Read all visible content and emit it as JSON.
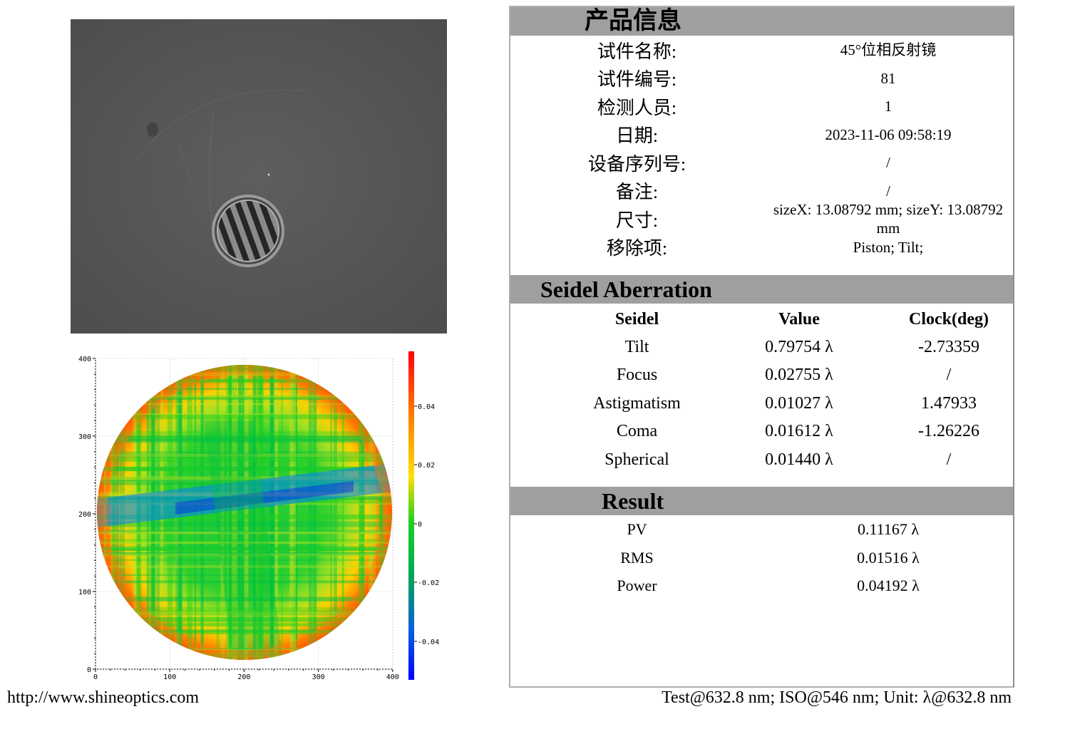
{
  "footer": {
    "url": "http://www.shineoptics.com",
    "test_info": "Test@632.8 nm; ISO@546 nm; Unit: λ@632.8 nm"
  },
  "map": {
    "x_ticks": [
      "0",
      "100",
      "200",
      "300",
      "400"
    ],
    "y_ticks": [
      "0",
      "100",
      "200",
      "300",
      "400"
    ],
    "colorbar_ticks": [
      "0.04",
      "0.02",
      "0",
      "-0.02",
      "-0.04"
    ],
    "colors": [
      "#0000ff",
      "#0080ff",
      "#00c040",
      "#20d020",
      "#c0e020",
      "#ffd000",
      "#ff8000",
      "#ff0000"
    ]
  },
  "product": {
    "title": "产品信息",
    "rows": [
      {
        "label": "试件名称:",
        "value": "45°位相反射镜"
      },
      {
        "label": "试件编号:",
        "value": "81"
      },
      {
        "label": "检测人员:",
        "value": "1"
      },
      {
        "label": "日期:",
        "value": "2023-11-06 09:58:19"
      },
      {
        "label": "设备序列号:",
        "value": "/"
      },
      {
        "label": "备注:",
        "value": "/"
      },
      {
        "label": "尺寸:",
        "value": "sizeX: 13.08792 mm; sizeY: 13.08792 mm"
      },
      {
        "label": "移除项:",
        "value": "Piston; Tilt;"
      }
    ]
  },
  "seidel": {
    "title": "Seidel Aberration",
    "headers": [
      "Seidel",
      "Value",
      "Clock(deg)"
    ],
    "rows": [
      {
        "name": "Tilt",
        "value": "0.79754 λ",
        "clock": "-2.73359"
      },
      {
        "name": "Focus",
        "value": "0.02755 λ",
        "clock": "/"
      },
      {
        "name": "Astigmatism",
        "value": "0.01027 λ",
        "clock": "1.47933"
      },
      {
        "name": "Coma",
        "value": "0.01612 λ",
        "clock": "-1.26226"
      },
      {
        "name": "Spherical",
        "value": "0.01440 λ",
        "clock": "/"
      }
    ]
  },
  "result": {
    "title": "Result",
    "rows": [
      {
        "name": "PV",
        "value": "0.11167 λ"
      },
      {
        "name": "RMS",
        "value": "0.01516 λ"
      },
      {
        "name": "Power",
        "value": "0.04192 λ"
      }
    ]
  }
}
